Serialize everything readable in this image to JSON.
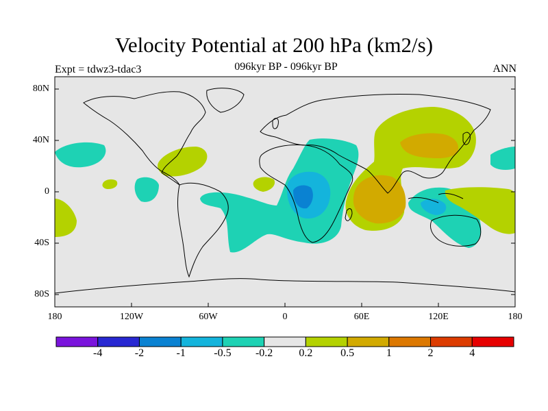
{
  "title": "Velocity Potential at 200 hPa (km2/s)",
  "subtitle": "096kyr BP - 096kyr BP",
  "experiment": "Expt = tdwz3-tdac3",
  "season": "ANN",
  "lat_labels": [
    "80N",
    "40N",
    "0",
    "40S",
    "80S"
  ],
  "lon_labels": [
    "180",
    "120W",
    "60W",
    "0",
    "60E",
    "120E",
    "180"
  ],
  "colorbar": {
    "colors": [
      "#7a14dc",
      "#2828d2",
      "#0a82d2",
      "#14b4dc",
      "#1ed2b4",
      "#e6e6e6",
      "#b4d200",
      "#d2aa00",
      "#dc7800",
      "#dc3c00",
      "#e60000"
    ],
    "labels": [
      "-4",
      "-2",
      "-1",
      "-0.5",
      "-0.2",
      "0.2",
      "0.5",
      "1",
      "2",
      "4"
    ]
  },
  "colors": {
    "land_outline": "#000000",
    "background_field": "#e6e6e6"
  }
}
